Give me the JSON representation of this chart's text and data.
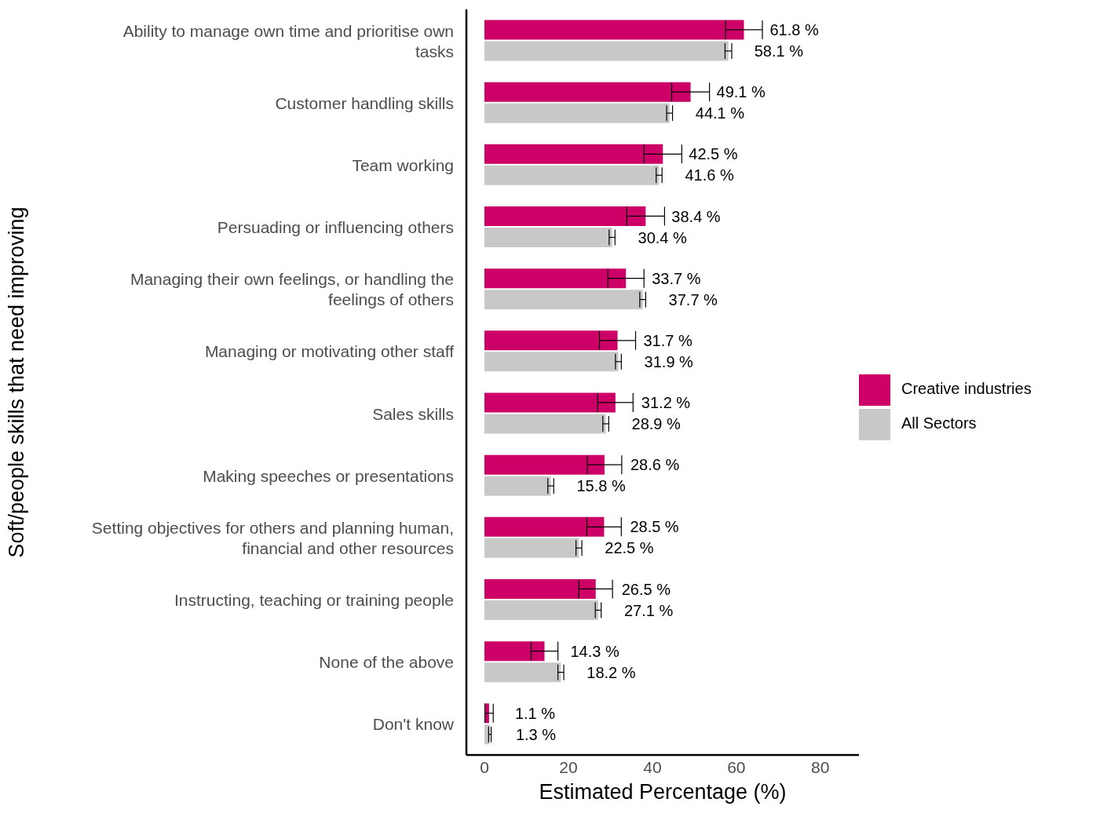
{
  "chart_data": {
    "type": "bar",
    "orientation": "horizontal",
    "xlabel": "Estimated Percentage (%)",
    "ylabel": "Soft/people skills that need improving",
    "categories": [
      "Ability to manage own time and prioritise own tasks",
      "Customer handling skills",
      "Team working",
      "Persuading or influencing others",
      "Managing their own feelings, or handling the feelings of others",
      "Managing or motivating other staff",
      "Sales skills",
      "Making speeches or presentations",
      "Setting objectives for others and planning human, financial and other resources",
      "Instructing, teaching or training people",
      "None of the above",
      "Don't know"
    ],
    "series": [
      {
        "name": "Creative industries",
        "color": "#cc0066",
        "values": [
          61.8,
          49.1,
          42.5,
          38.4,
          33.7,
          31.7,
          31.2,
          28.6,
          28.5,
          26.5,
          14.3,
          1.1
        ],
        "errors": [
          4.4,
          4.5,
          4.5,
          4.5,
          4.3,
          4.3,
          4.2,
          4.1,
          4.1,
          4.0,
          3.2,
          1.0
        ],
        "value_labels": [
          "61.8 %",
          "49.1 %",
          "42.5 %",
          "38.4 %",
          "33.7 %",
          "31.7 %",
          "31.2 %",
          "28.6 %",
          "28.5 %",
          "26.5 %",
          "14.3 %",
          "1.1 %"
        ]
      },
      {
        "name": "All Sectors",
        "color": "#c8c8c8",
        "values": [
          58.1,
          44.1,
          41.6,
          30.4,
          37.7,
          31.9,
          28.9,
          15.8,
          22.5,
          27.1,
          18.2,
          1.3
        ],
        "errors": [
          0.8,
          0.7,
          0.7,
          0.7,
          0.7,
          0.7,
          0.7,
          0.7,
          0.7,
          0.7,
          0.7,
          0.3
        ],
        "value_labels": [
          "58.1 %",
          "44.1 %",
          "41.6 %",
          "30.4 %",
          "37.7 %",
          "31.9 %",
          "28.9 %",
          "15.8 %",
          "22.5 %",
          "27.1 %",
          "18.2 %",
          "1.3 %"
        ]
      }
    ],
    "xlim": [
      -4.3,
      89.2
    ],
    "xticks": [
      0,
      20,
      40,
      60,
      80
    ],
    "grid": false,
    "legend": "right"
  }
}
